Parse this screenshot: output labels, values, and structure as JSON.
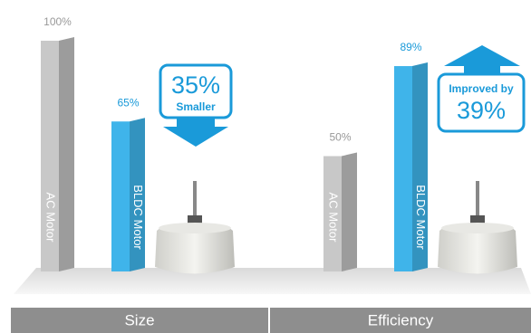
{
  "chart_data": [
    {
      "type": "bar",
      "title": "Size",
      "categories": [
        "AC Motor",
        "BLDC Motor"
      ],
      "values": [
        100,
        65
      ],
      "value_labels": [
        "100%",
        "65%"
      ],
      "colors": [
        "#c8c8c8",
        "#3fb4ea"
      ],
      "annotations": [
        "35%",
        "Smaller"
      ]
    },
    {
      "type": "bar",
      "title": "Efficiency",
      "categories": [
        "AC Motor",
        "BLDC Motor"
      ],
      "values": [
        50,
        89
      ],
      "value_labels": [
        "50%",
        "89%"
      ],
      "colors": [
        "#c8c8c8",
        "#3fb4ea"
      ],
      "annotations": [
        "Improved by",
        "39%"
      ]
    }
  ]
}
